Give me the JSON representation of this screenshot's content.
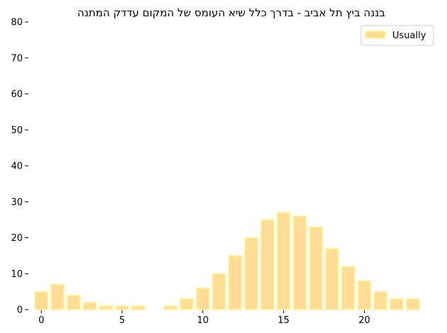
{
  "chart_data": {
    "type": "bar",
    "title": "בננה ביץ תל אביב - בדרך כלל שיא העומס של המקום עדדק המתנה",
    "x": [
      0,
      1,
      2,
      3,
      4,
      5,
      6,
      7,
      8,
      9,
      10,
      11,
      12,
      13,
      14,
      15,
      16,
      17,
      18,
      19,
      20,
      21,
      22,
      23
    ],
    "series": [
      {
        "name": "Usually",
        "values": [
          5,
          7,
          4,
          2,
          1,
          1,
          1,
          0,
          1,
          3,
          6,
          10,
          15,
          20,
          25,
          27,
          26,
          23,
          17,
          12,
          8,
          5,
          3,
          3
        ]
      }
    ],
    "xticks": [
      0,
      5,
      10,
      15,
      20
    ],
    "yticks": [
      0,
      10,
      20,
      30,
      40,
      50,
      60,
      70,
      80
    ],
    "xlim": [
      -0.8,
      23.8
    ],
    "ylim": [
      0,
      80
    ],
    "xlabel": "",
    "ylabel": "",
    "grid": false,
    "legend_position": "top-right",
    "colors": {
      "bar_fill": "#ffdd94",
      "bar_edge": "#fff799"
    }
  }
}
